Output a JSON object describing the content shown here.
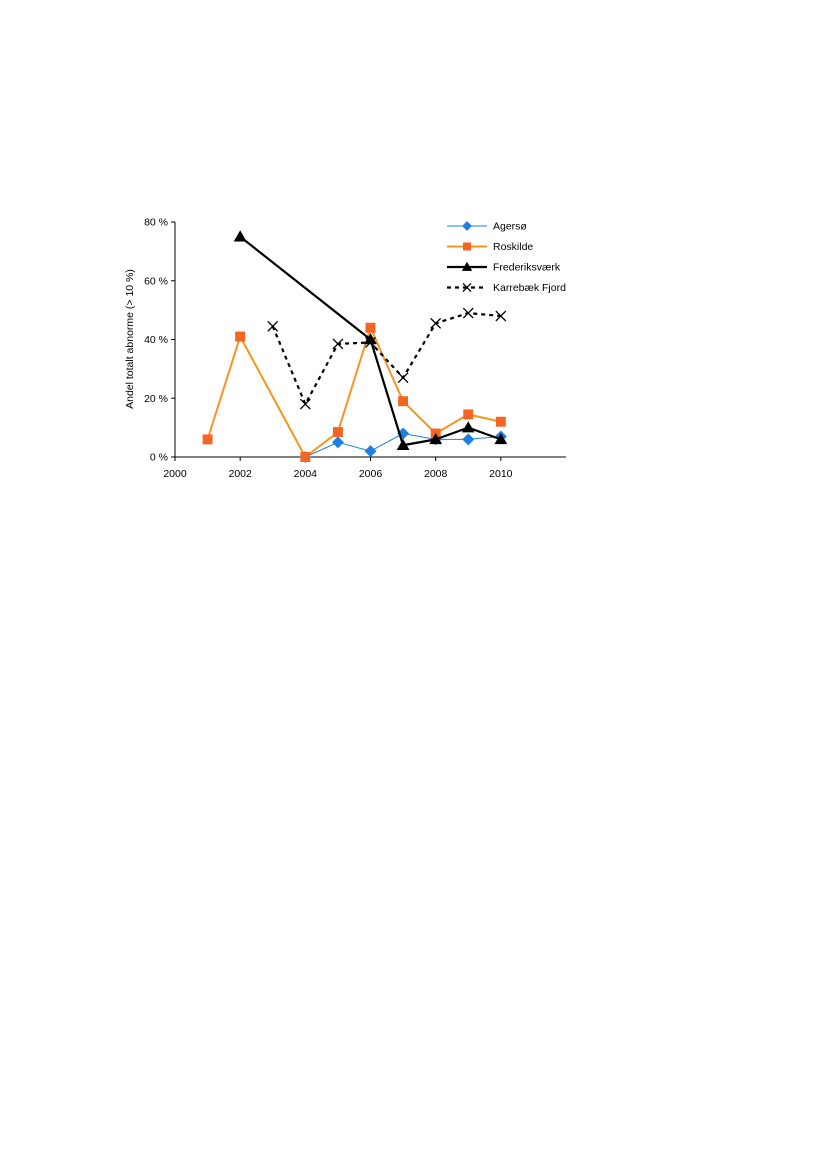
{
  "chart_data": {
    "type": "line",
    "title": "",
    "xlabel": "",
    "ylabel": "Andel totalt abnorme (> 10 %)",
    "xlim": [
      2000,
      2012
    ],
    "ylim": [
      0,
      80
    ],
    "x_ticks": [
      2000,
      2002,
      2004,
      2006,
      2008,
      2010
    ],
    "x_tick_labels": [
      "2000",
      "2002",
      "2004",
      "2006",
      "2008",
      "2010"
    ],
    "y_ticks": [
      0,
      20,
      40,
      60,
      80
    ],
    "y_tick_labels": [
      "0 %",
      "20 %",
      "40 %",
      "60 %",
      "80 %"
    ],
    "grid": false,
    "legend_position": "top-right",
    "series": [
      {
        "name": "Agersø",
        "color": "#1f7fe0",
        "marker": "diamond",
        "dash": false,
        "line_weight": "thin",
        "points": [
          [
            2004,
            0
          ],
          [
            2005,
            5
          ],
          [
            2006,
            2
          ],
          [
            2007,
            8
          ],
          [
            2008,
            6
          ],
          [
            2009,
            6
          ],
          [
            2010,
            7
          ]
        ]
      },
      {
        "name": "Roskilde",
        "color": "#f7941d",
        "marker_color": "#f26522",
        "marker": "square",
        "dash": false,
        "line_weight": "medium",
        "points": [
          [
            2001,
            6
          ],
          [
            2002,
            41
          ],
          [
            2004,
            0
          ],
          [
            2005,
            8.5
          ],
          [
            2006,
            44
          ],
          [
            2007,
            19
          ],
          [
            2008,
            8
          ],
          [
            2009,
            14.5
          ],
          [
            2010,
            12
          ]
        ]
      },
      {
        "name": "Frederiksværk",
        "color": "#000000",
        "marker": "triangle",
        "dash": false,
        "line_weight": "thick",
        "points": [
          [
            2002,
            75
          ],
          [
            2006,
            40
          ],
          [
            2007,
            4
          ],
          [
            2008,
            6
          ],
          [
            2009,
            10
          ],
          [
            2010,
            6
          ]
        ]
      },
      {
        "name": "Karrebæk Fjord",
        "color": "#000000",
        "marker": "x",
        "dash": true,
        "line_weight": "thick",
        "points": [
          [
            2003,
            44.5
          ],
          [
            2004,
            18
          ],
          [
            2005,
            38.5
          ],
          [
            2006,
            39
          ],
          [
            2007,
            27
          ],
          [
            2008,
            45.5
          ],
          [
            2009,
            49
          ],
          [
            2010,
            48
          ]
        ]
      }
    ]
  }
}
